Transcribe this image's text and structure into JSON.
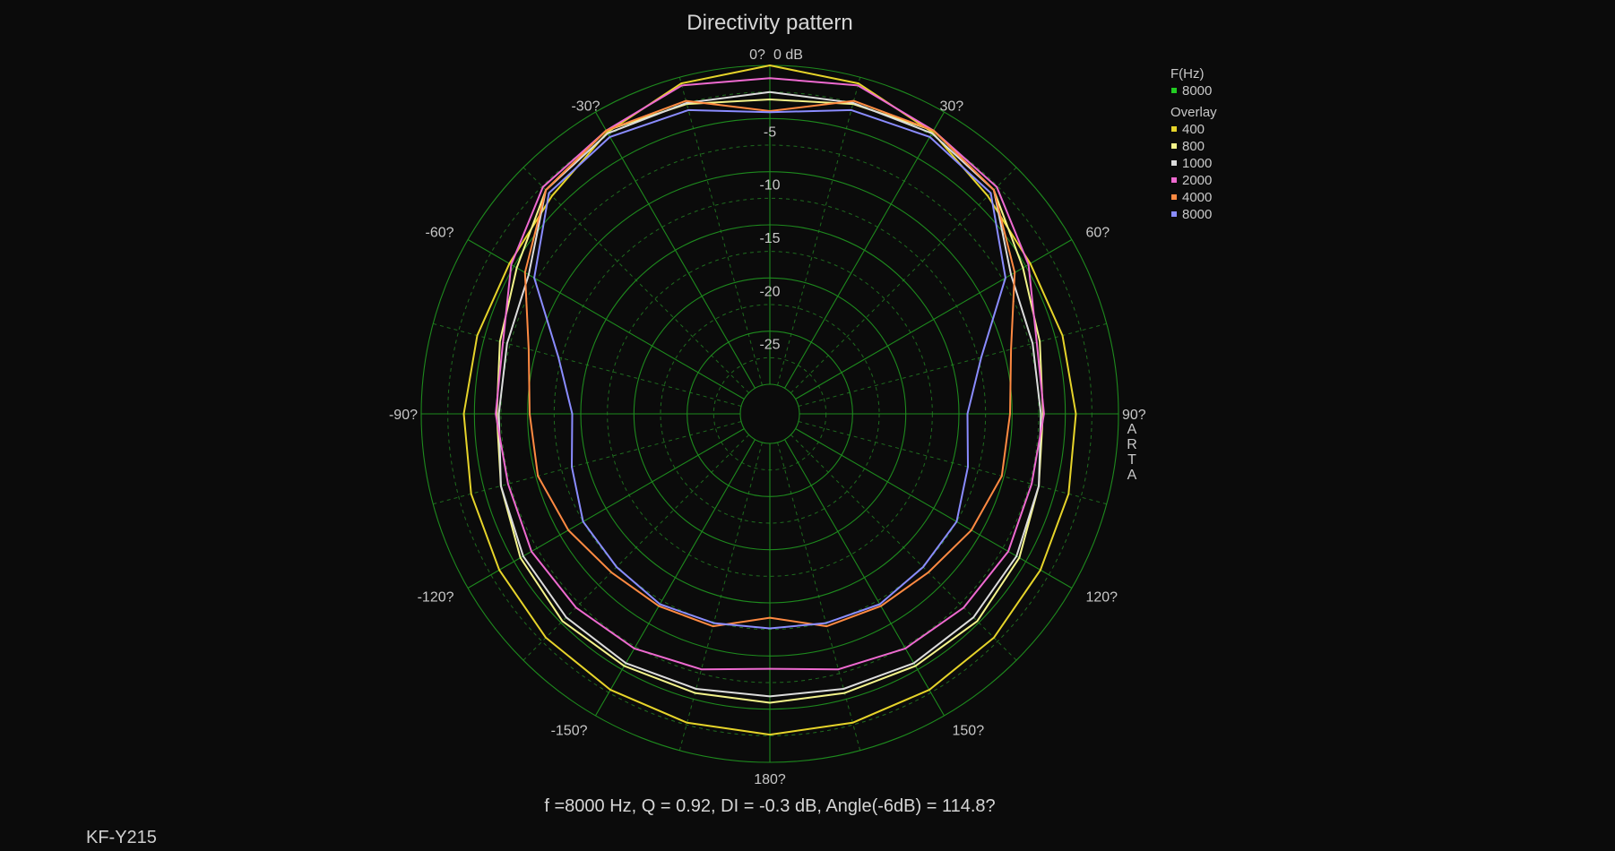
{
  "chart_data": {
    "type": "polar-line",
    "title": "Directivity pattern",
    "radial_axis": {
      "unit_label": "dB",
      "min": -30,
      "max": 0,
      "ring_labels": [
        "0 dB",
        "-5",
        "-10",
        "-15",
        "-20",
        "-25"
      ],
      "ring_values": [
        0,
        -5,
        -10,
        -15,
        -20,
        -25
      ]
    },
    "angle_ticks": [
      {
        "angle": 0,
        "label": "0?"
      },
      {
        "angle": 30,
        "label": "30?"
      },
      {
        "angle": 60,
        "label": "60?"
      },
      {
        "angle": 90,
        "label": "90?"
      },
      {
        "angle": 120,
        "label": "120?"
      },
      {
        "angle": 150,
        "label": "150?"
      },
      {
        "angle": 180,
        "label": "180?"
      },
      {
        "angle": -150,
        "label": "-150?"
      },
      {
        "angle": -120,
        "label": "-120?"
      },
      {
        "angle": -90,
        "label": "-90?"
      },
      {
        "angle": -60,
        "label": "-60?"
      },
      {
        "angle": -30,
        "label": "-30?"
      }
    ],
    "legend": {
      "placement": "top-right",
      "header": "F(Hz)",
      "current": {
        "name": "8000",
        "color": "#22cc22"
      },
      "overlay_header": "Overlay"
    },
    "angles": [
      0,
      15,
      30,
      45,
      60,
      75,
      90,
      105,
      120,
      135,
      150,
      165,
      180
    ],
    "series": [
      {
        "name": "400",
        "color": "#e6d42a",
        "values": [
          0,
          -0.6,
          -2.2,
          -3.8,
          -4.5,
          -4.3,
          -4.0,
          -3.7,
          -3.4,
          -3.0,
          -2.8,
          -2.7,
          -2.6
        ]
      },
      {
        "name": "800",
        "color": "#f4f48a",
        "values": [
          -3.2,
          -2.6,
          -2.0,
          -3.0,
          -5.3,
          -6.5,
          -7.1,
          -6.6,
          -5.7,
          -5.2,
          -5.4,
          -5.6,
          -5.6
        ]
      },
      {
        "name": "1000",
        "color": "#dcdcdc",
        "values": [
          -2.5,
          -2.5,
          -2.3,
          -3.0,
          -6.6,
          -7.2,
          -7.3,
          -6.6,
          -6.0,
          -5.7,
          -5.7,
          -6.0,
          -6.2
        ]
      },
      {
        "name": "2000",
        "color": "#ee6ad0",
        "values": [
          -1.2,
          -0.8,
          -2.0,
          -2.6,
          -4.7,
          -6.8,
          -7.0,
          -7.3,
          -6.9,
          -7.0,
          -7.3,
          -7.9,
          -8.8
        ]
      },
      {
        "name": "4000",
        "color": "#ff8a42",
        "values": [
          -4.3,
          -2.3,
          -2.0,
          -3.0,
          -6.2,
          -9.3,
          -10.2,
          -10.2,
          -10.9,
          -11.7,
          -11.9,
          -12.1,
          -13.6
        ]
      },
      {
        "name": "8000",
        "color": "#8a8cff",
        "values": [
          -4.4,
          -3.2,
          -2.7,
          -3.4,
          -7.2,
          -12.2,
          -14.2,
          -13.5,
          -12.5,
          -12.4,
          -12.1,
          -12.4,
          -12.6
        ]
      }
    ]
  },
  "footer": {
    "metrics": "f =8000 Hz,  Q =  0.92,  DI =  -0.3 dB, Angle(-6dB) = 114.8?"
  },
  "watermark": "ARTA",
  "model": "KF-Y215"
}
